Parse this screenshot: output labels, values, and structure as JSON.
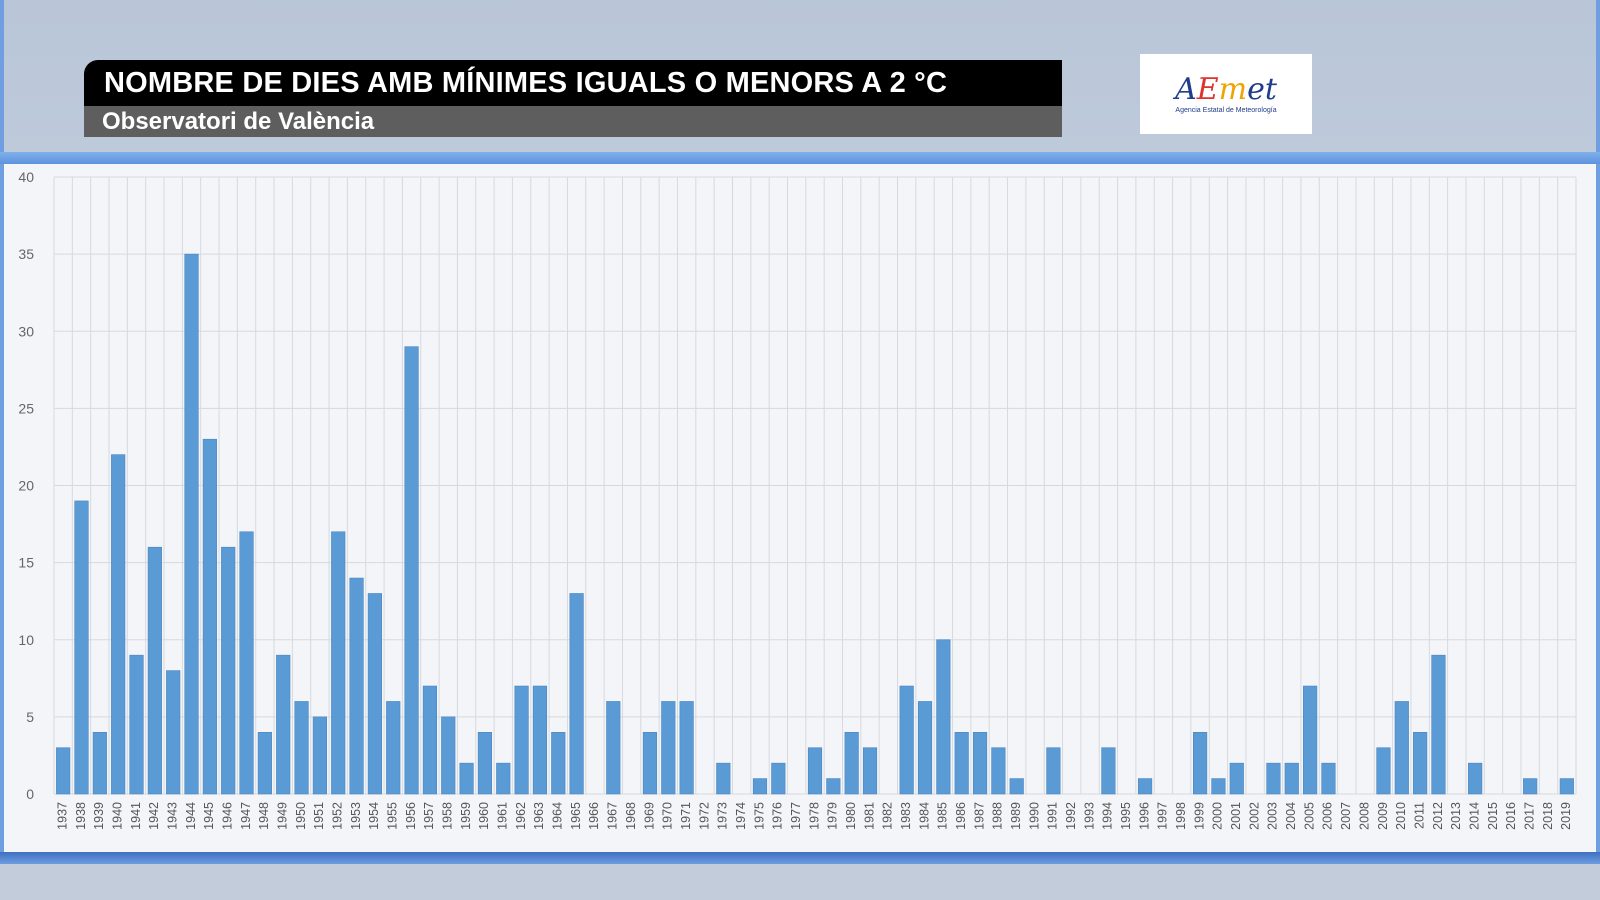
{
  "header": {
    "title": "NOMBRE DE DIES AMB MÍNIMES IGUALS O MENORS A 2 °C",
    "subtitle": "Observatori de València"
  },
  "logo": {
    "icon": "aemet-logo-icon",
    "word_a": "A",
    "word_e": "E",
    "word_m": "m",
    "word_rest": "et",
    "tagline": "Agencia Estatal de Meteorología"
  },
  "colors": {
    "bar": "#5b9bd5",
    "bar_edge": "#4a86c2",
    "grid": "#d6d9de"
  },
  "chart_data": {
    "type": "bar",
    "title": "NOMBRE DE DIES AMB MÍNIMES IGUALS O MENORS A 2 °C",
    "subtitle": "Observatori de València",
    "xlabel": "",
    "ylabel": "",
    "ylim": [
      0,
      40
    ],
    "yticks": [
      0,
      5,
      10,
      15,
      20,
      25,
      30,
      35,
      40
    ],
    "grid": true,
    "legend": "none",
    "categories": [
      "1937",
      "1938",
      "1939",
      "1940",
      "1941",
      "1942",
      "1943",
      "1944",
      "1945",
      "1946",
      "1947",
      "1948",
      "1949",
      "1950",
      "1951",
      "1952",
      "1953",
      "1954",
      "1955",
      "1956",
      "1957",
      "1958",
      "1959",
      "1960",
      "1961",
      "1962",
      "1963",
      "1964",
      "1965",
      "1966",
      "1967",
      "1968",
      "1969",
      "1970",
      "1971",
      "1972",
      "1973",
      "1974",
      "1975",
      "1976",
      "1977",
      "1978",
      "1979",
      "1980",
      "1981",
      "1982",
      "1983",
      "1984",
      "1985",
      "1986",
      "1987",
      "1988",
      "1989",
      "1990",
      "1991",
      "1992",
      "1993",
      "1994",
      "1995",
      "1996",
      "1997",
      "1998",
      "1999",
      "2000",
      "2001",
      "2002",
      "2003",
      "2004",
      "2005",
      "2006",
      "2007",
      "2008",
      "2009",
      "2010",
      "2011",
      "2012",
      "2013",
      "2014",
      "2015",
      "2016",
      "2017",
      "2018",
      "2019"
    ],
    "values": [
      3,
      19,
      4,
      22,
      9,
      16,
      8,
      35,
      23,
      16,
      17,
      4,
      9,
      6,
      5,
      17,
      14,
      13,
      6,
      29,
      7,
      5,
      2,
      4,
      2,
      7,
      7,
      4,
      13,
      0,
      6,
      0,
      4,
      6,
      6,
      0,
      2,
      0,
      1,
      2,
      0,
      3,
      1,
      4,
      3,
      0,
      7,
      6,
      10,
      4,
      4,
      3,
      1,
      0,
      3,
      0,
      0,
      3,
      0,
      1,
      0,
      0,
      4,
      1,
      2,
      0,
      2,
      2,
      7,
      2,
      0,
      0,
      3,
      6,
      4,
      9,
      0,
      2,
      0,
      0,
      1,
      0,
      1
    ]
  }
}
